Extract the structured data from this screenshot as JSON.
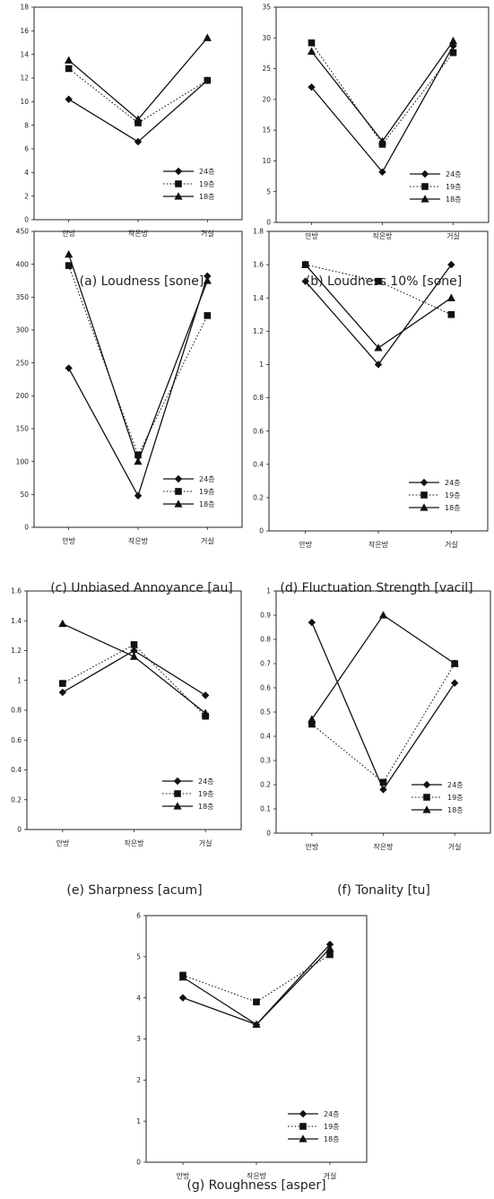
{
  "chart_data": [
    {
      "panel": "a",
      "type": "line",
      "caption": "(a) Loudness [sone]",
      "categories": [
        "안방",
        "작은방",
        "거실"
      ],
      "ylim": [
        0,
        18
      ],
      "yticks": [
        0,
        2,
        4,
        6,
        8,
        10,
        12,
        14,
        16,
        18
      ],
      "legend_position": "bottom-right",
      "grid": false,
      "series": [
        {
          "name": "24층",
          "marker": "diamond",
          "line": "solid",
          "values": [
            10.2,
            6.6,
            11.8
          ]
        },
        {
          "name": "19층",
          "marker": "square",
          "line": "dotted",
          "values": [
            12.8,
            8.2,
            11.8
          ]
        },
        {
          "name": "18층",
          "marker": "triangle",
          "line": "solid",
          "values": [
            13.5,
            8.5,
            15.4
          ]
        }
      ]
    },
    {
      "panel": "b",
      "type": "line",
      "caption": "(b) Loudness 10% [sone]",
      "categories": [
        "안방",
        "작은방",
        "거실"
      ],
      "ylim": [
        0,
        35
      ],
      "yticks": [
        0,
        5,
        10,
        15,
        20,
        25,
        30,
        35
      ],
      "legend_position": "bottom-right",
      "grid": false,
      "series": [
        {
          "name": "24층",
          "marker": "diamond",
          "line": "solid",
          "values": [
            22,
            8.2,
            28.7
          ]
        },
        {
          "name": "19층",
          "marker": "square",
          "line": "dotted",
          "values": [
            29.2,
            12.7,
            27.6
          ]
        },
        {
          "name": "18층",
          "marker": "triangle",
          "line": "solid",
          "values": [
            27.8,
            13.2,
            29.5
          ]
        }
      ]
    },
    {
      "panel": "c",
      "type": "line",
      "caption": "(c) Unbiased Annoyance [au]",
      "categories": [
        "안방",
        "작은방",
        "거실"
      ],
      "ylim": [
        0,
        450
      ],
      "yticks": [
        0,
        50,
        100,
        150,
        200,
        250,
        300,
        350,
        400,
        450
      ],
      "legend_position": "bottom-right",
      "grid": false,
      "series": [
        {
          "name": "24층",
          "marker": "diamond",
          "line": "solid",
          "values": [
            242,
            48,
            382
          ]
        },
        {
          "name": "19층",
          "marker": "square",
          "line": "dotted",
          "values": [
            398,
            110,
            322
          ]
        },
        {
          "name": "18층",
          "marker": "triangle",
          "line": "solid",
          "values": [
            415,
            100,
            375
          ]
        }
      ]
    },
    {
      "panel": "d",
      "type": "line",
      "caption": "(d) Fluctuation Strength [vacil]",
      "categories": [
        "안방",
        "작은방",
        "거실"
      ],
      "ylim": [
        0,
        1.8
      ],
      "yticks": [
        0,
        0.2,
        0.4,
        0.6,
        0.8,
        1,
        1.2,
        1.4,
        1.6,
        1.8
      ],
      "legend_position": "bottom-right",
      "grid": false,
      "series": [
        {
          "name": "24층",
          "marker": "diamond",
          "line": "solid",
          "values": [
            1.5,
            1.0,
            1.6
          ]
        },
        {
          "name": "19층",
          "marker": "square",
          "line": "dotted",
          "values": [
            1.6,
            1.5,
            1.3
          ]
        },
        {
          "name": "18층",
          "marker": "triangle",
          "line": "solid",
          "values": [
            1.6,
            1.1,
            1.4
          ]
        }
      ]
    },
    {
      "panel": "e",
      "type": "line",
      "caption": "(e) Sharpness [acum]",
      "categories": [
        "안방",
        "작은방",
        "거실"
      ],
      "ylim": [
        0,
        1.6
      ],
      "yticks": [
        0,
        0.2,
        0.4,
        0.6,
        0.8,
        1,
        1.2,
        1.4,
        1.6
      ],
      "legend_position": "bottom-right",
      "grid": false,
      "series": [
        {
          "name": "24층",
          "marker": "diamond",
          "line": "solid",
          "values": [
            0.92,
            1.2,
            0.9
          ]
        },
        {
          "name": "19층",
          "marker": "square",
          "line": "dotted",
          "values": [
            0.98,
            1.24,
            0.76
          ]
        },
        {
          "name": "18층",
          "marker": "triangle",
          "line": "solid",
          "values": [
            1.38,
            1.16,
            0.78
          ]
        }
      ]
    },
    {
      "panel": "f",
      "type": "line",
      "caption": "(f) Tonality [tu]",
      "categories": [
        "안방",
        "작은방",
        "거실"
      ],
      "ylim": [
        0,
        1
      ],
      "yticks": [
        0,
        0.1,
        0.2,
        0.3,
        0.4,
        0.5,
        0.6,
        0.7,
        0.8,
        0.9,
        1
      ],
      "legend_position": "bottom-right",
      "grid": false,
      "series": [
        {
          "name": "24층",
          "marker": "diamond",
          "line": "solid",
          "values": [
            0.87,
            0.18,
            0.62
          ]
        },
        {
          "name": "19층",
          "marker": "square",
          "line": "dotted",
          "values": [
            0.45,
            0.21,
            0.7
          ]
        },
        {
          "name": "18층",
          "marker": "triangle",
          "line": "solid",
          "values": [
            0.47,
            0.9,
            0.7
          ]
        }
      ]
    },
    {
      "panel": "g",
      "type": "line",
      "caption": "(g) Roughness [asper]",
      "categories": [
        "안방",
        "작은방",
        "거실"
      ],
      "ylim": [
        0,
        6
      ],
      "yticks": [
        0,
        1,
        2,
        3,
        4,
        5,
        6
      ],
      "legend_position": "bottom-right",
      "grid": false,
      "series": [
        {
          "name": "24층",
          "marker": "diamond",
          "line": "solid",
          "values": [
            4.0,
            3.35,
            5.3
          ]
        },
        {
          "name": "19층",
          "marker": "square",
          "line": "dotted",
          "values": [
            4.55,
            3.9,
            5.05
          ]
        },
        {
          "name": "18층",
          "marker": "triangle",
          "line": "solid",
          "values": [
            4.5,
            3.35,
            5.2
          ]
        }
      ]
    }
  ]
}
